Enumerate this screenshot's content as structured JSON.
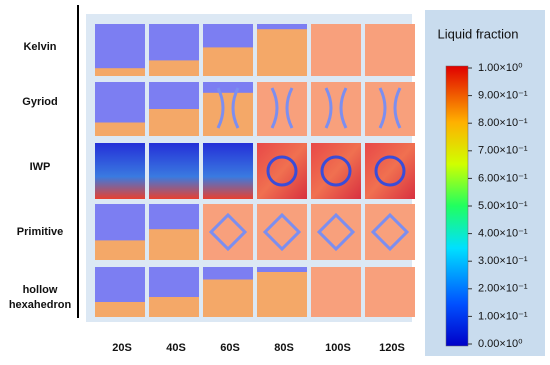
{
  "rows": [
    "Kelvin",
    "Gyriod",
    "IWP",
    "Primitive",
    "hollow hexahedron"
  ],
  "columns": [
    "20S",
    "40S",
    "60S",
    "80S",
    "100S",
    "120S"
  ],
  "colorbar": {
    "title": "Liquid fraction",
    "ticks": [
      "1.00×10⁰",
      "9.00×10⁻¹",
      "8.00×10⁻¹",
      "7.00×10⁻¹",
      "6.00×10⁻¹",
      "5.00×10⁻¹",
      "4.00×10⁻¹",
      "3.00×10⁻¹",
      "2.00×10⁻¹",
      "1.00×10⁻¹",
      "0.00×10⁰"
    ]
  }
}
